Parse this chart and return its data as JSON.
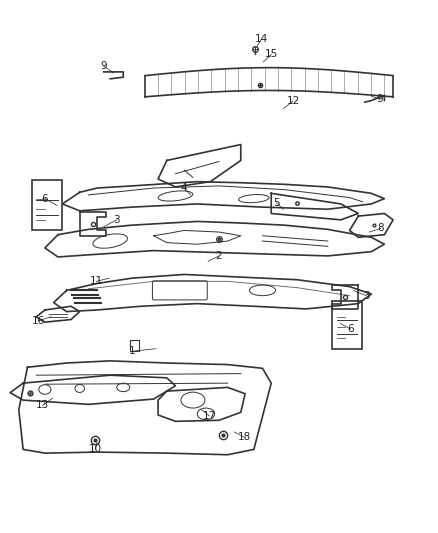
{
  "title": "",
  "bg_color": "#ffffff",
  "line_color": "#333333",
  "label_color": "#222222",
  "fig_width": 4.38,
  "fig_height": 5.33,
  "dpi": 100
}
